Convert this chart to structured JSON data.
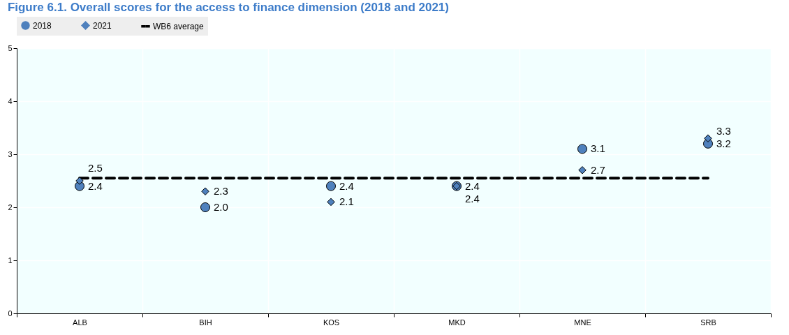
{
  "chart_data": {
    "type": "scatter",
    "title": "Figure 6.1. Overall scores for the access to finance dimension (2018 and 2021)",
    "categories": [
      "ALB",
      "BIH",
      "KOS",
      "MKD",
      "MNE",
      "SRB"
    ],
    "series": [
      {
        "name": "2018",
        "marker": "circle",
        "color": "#4f81bd",
        "values": [
          2.4,
          2.0,
          2.4,
          2.4,
          3.1,
          3.2
        ],
        "value_labels": [
          "2.4",
          "2.0",
          "2.4",
          "2.4",
          "3.1",
          "3.2"
        ]
      },
      {
        "name": "2021",
        "marker": "diamond",
        "color": "#4f81bd",
        "values": [
          2.5,
          2.3,
          2.1,
          2.4,
          2.7,
          3.3
        ],
        "value_labels": [
          "2.5",
          "2.3",
          "2.1",
          "2.4",
          "2.7",
          "3.3"
        ]
      },
      {
        "name": "WB6 average",
        "type": "line",
        "marker": "none",
        "line_style": "dashed",
        "color": "#000000",
        "values": [
          2.55,
          2.55,
          2.55,
          2.55,
          2.55,
          2.55
        ]
      }
    ],
    "ylim": [
      0,
      5
    ],
    "yticks": [
      0,
      1,
      2,
      3,
      4,
      5
    ],
    "grid": true,
    "legend": "top"
  }
}
